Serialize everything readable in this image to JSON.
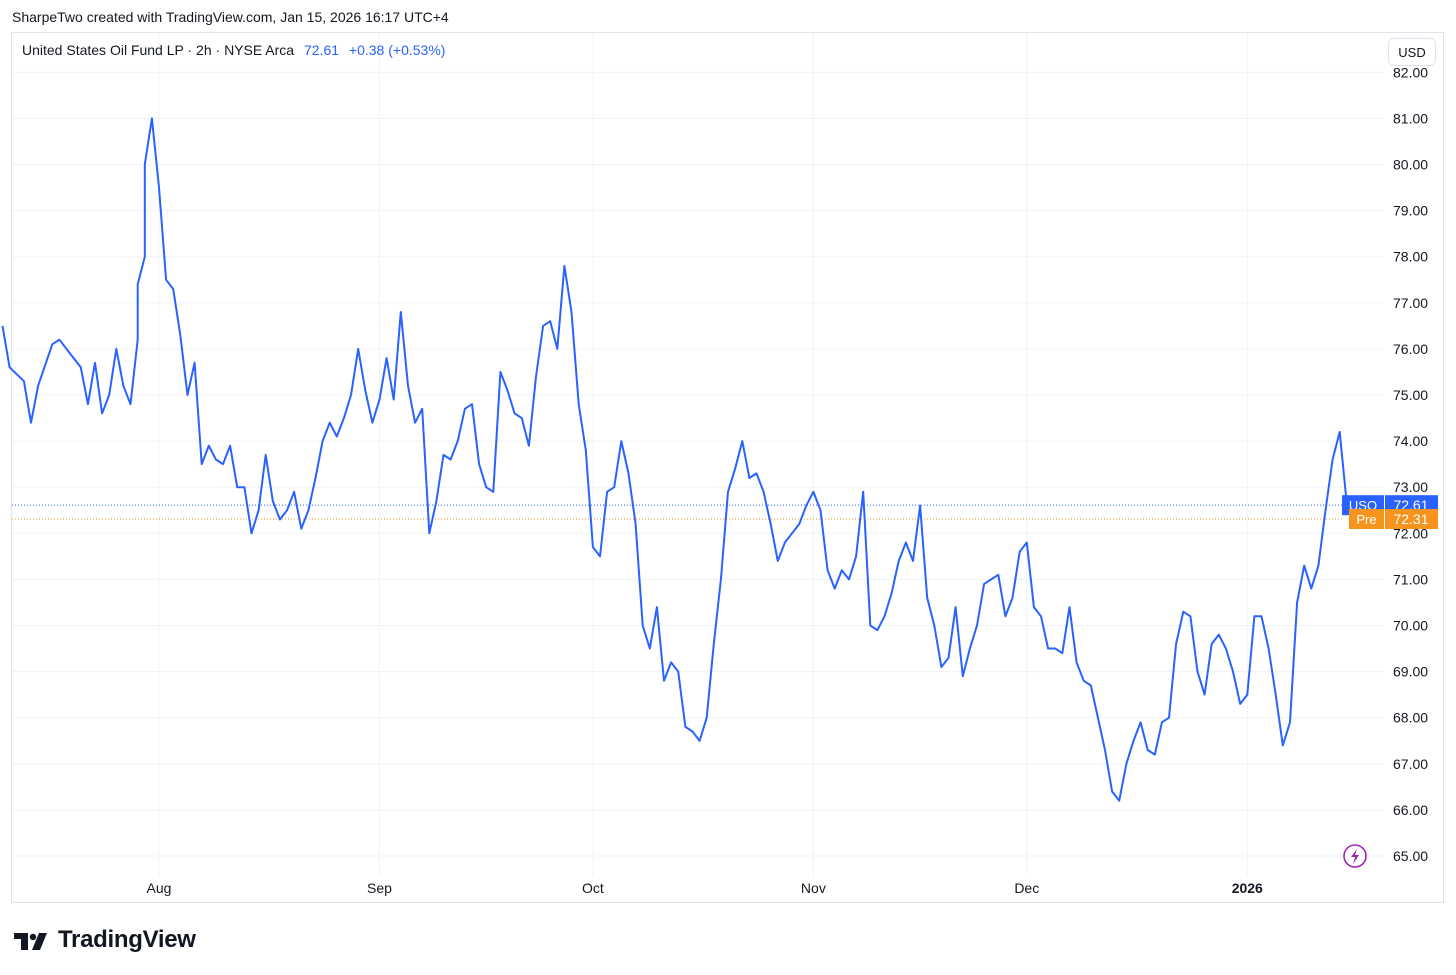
{
  "header": {
    "caption": "SharpeTwo created with TradingView.com, Jan 15, 2026 16:17 UTC+4"
  },
  "legend": {
    "symbol": "United States Oil Fund LP · 2h · NYSE Arca",
    "price": "72.61",
    "change": "+0.38 (+0.53%)"
  },
  "toolbar": {
    "currency": "USD"
  },
  "brand": {
    "name": "TradingView"
  },
  "colors": {
    "line": "#2962ff",
    "pre": "#f7941d",
    "grid": "#f0f3fa",
    "axis_text": "#131722"
  },
  "icons": {
    "logo": "tradingview-logo-icon",
    "lightning": "lightning-icon"
  },
  "chart_data": {
    "type": "line",
    "title": "United States Oil Fund LP · 2h · NYSE Arca",
    "ylim": [
      64.9,
      82.0
    ],
    "x_ticks": [
      {
        "label": "Aug",
        "date": "2025-08-01",
        "bold": false
      },
      {
        "label": "Sep",
        "date": "2025-09-01",
        "bold": false
      },
      {
        "label": "Oct",
        "date": "2025-10-01",
        "bold": false
      },
      {
        "label": "Nov",
        "date": "2025-11-01",
        "bold": false
      },
      {
        "label": "Dec",
        "date": "2025-12-01",
        "bold": false
      },
      {
        "label": "2026",
        "date": "2026-01-01",
        "bold": true
      }
    ],
    "y_ticks": [
      "65.00",
      "66.00",
      "67.00",
      "68.00",
      "69.00",
      "70.00",
      "71.00",
      "72.00",
      "73.00",
      "74.00",
      "75.00",
      "76.00",
      "77.00",
      "78.00",
      "79.00",
      "80.00",
      "81.00",
      "82.00"
    ],
    "grid": true,
    "price_labels": [
      {
        "tag": "USO",
        "value": 72.61,
        "text": "72.61",
        "color": "#2962ff"
      },
      {
        "tag": "Pre",
        "value": 72.31,
        "text": "72.31",
        "color": "#f7941d"
      }
    ],
    "series": [
      {
        "x": [
          "2025-07-10",
          "2025-07-11",
          "2025-07-13",
          "2025-07-14",
          "2025-07-15",
          "2025-07-17",
          "2025-07-18",
          "2025-07-20",
          "2025-07-21",
          "2025-07-22",
          "2025-07-23",
          "2025-07-24",
          "2025-07-25",
          "2025-07-26",
          "2025-07-27",
          "2025-07-28",
          "2025-07-29",
          "2025-07-29",
          "2025-07-30",
          "2025-07-30",
          "2025-07-31",
          "2025-08-01",
          "2025-08-02",
          "2025-08-03",
          "2025-08-04",
          "2025-08-05",
          "2025-08-06",
          "2025-08-07",
          "2025-08-08",
          "2025-08-09",
          "2025-08-10",
          "2025-08-11",
          "2025-08-12",
          "2025-08-13",
          "2025-08-14",
          "2025-08-15",
          "2025-08-16",
          "2025-08-17",
          "2025-08-18",
          "2025-08-19",
          "2025-08-20",
          "2025-08-21",
          "2025-08-22",
          "2025-08-23",
          "2025-08-24",
          "2025-08-25",
          "2025-08-26",
          "2025-08-27",
          "2025-08-28",
          "2025-08-29",
          "2025-08-30",
          "2025-08-31",
          "2025-09-01",
          "2025-09-02",
          "2025-09-03",
          "2025-09-04",
          "2025-09-05",
          "2025-09-06",
          "2025-09-07",
          "2025-09-08",
          "2025-09-09",
          "2025-09-10",
          "2025-09-11",
          "2025-09-12",
          "2025-09-13",
          "2025-09-14",
          "2025-09-15",
          "2025-09-16",
          "2025-09-17",
          "2025-09-18",
          "2025-09-19",
          "2025-09-20",
          "2025-09-21",
          "2025-09-22",
          "2025-09-23",
          "2025-09-24",
          "2025-09-25",
          "2025-09-26",
          "2025-09-27",
          "2025-09-28",
          "2025-09-29",
          "2025-09-30",
          "2025-10-01",
          "2025-10-02",
          "2025-10-03",
          "2025-10-04",
          "2025-10-05",
          "2025-10-06",
          "2025-10-07",
          "2025-10-08",
          "2025-10-09",
          "2025-10-10",
          "2025-10-11",
          "2025-10-12",
          "2025-10-13",
          "2025-10-14",
          "2025-10-15",
          "2025-10-16",
          "2025-10-17",
          "2025-10-18",
          "2025-10-19",
          "2025-10-20",
          "2025-10-21",
          "2025-10-22",
          "2025-10-23",
          "2025-10-24",
          "2025-10-25",
          "2025-10-26",
          "2025-10-27",
          "2025-10-28",
          "2025-10-29",
          "2025-10-30",
          "2025-10-31",
          "2025-11-01",
          "2025-11-02",
          "2025-11-03",
          "2025-11-04",
          "2025-11-05",
          "2025-11-06",
          "2025-11-07",
          "2025-11-08",
          "2025-11-09",
          "2025-11-10",
          "2025-11-11",
          "2025-11-12",
          "2025-11-13",
          "2025-11-14",
          "2025-11-15",
          "2025-11-16",
          "2025-11-17",
          "2025-11-18",
          "2025-11-19",
          "2025-11-20",
          "2025-11-21",
          "2025-11-22",
          "2025-11-23",
          "2025-11-24",
          "2025-11-25",
          "2025-11-26",
          "2025-11-27",
          "2025-11-28",
          "2025-11-29",
          "2025-11-30",
          "2025-12-01",
          "2025-12-02",
          "2025-12-03",
          "2025-12-04",
          "2025-12-05",
          "2025-12-06",
          "2025-12-07",
          "2025-12-08",
          "2025-12-09",
          "2025-12-10",
          "2025-12-11",
          "2025-12-12",
          "2025-12-13",
          "2025-12-14",
          "2025-12-15",
          "2025-12-16",
          "2025-12-17",
          "2025-12-18",
          "2025-12-19",
          "2025-12-20",
          "2025-12-21",
          "2025-12-22",
          "2025-12-23",
          "2025-12-24",
          "2025-12-25",
          "2025-12-26",
          "2025-12-27",
          "2025-12-28",
          "2025-12-29",
          "2025-12-30",
          "2025-12-31",
          "2026-01-01",
          "2026-01-02",
          "2026-01-03",
          "2026-01-04",
          "2026-01-05",
          "2026-01-06",
          "2026-01-07",
          "2026-01-08",
          "2026-01-09",
          "2026-01-10",
          "2026-01-11",
          "2026-01-12",
          "2026-01-13",
          "2026-01-14",
          "2026-01-15"
        ],
        "values": [
          76.5,
          75.6,
          75.3,
          74.4,
          75.2,
          76.1,
          76.2,
          75.8,
          75.6,
          74.8,
          75.7,
          74.6,
          75.0,
          76.0,
          75.2,
          74.8,
          76.2,
          77.4,
          78.0,
          80.0,
          81.0,
          79.5,
          77.5,
          77.3,
          76.3,
          75.0,
          75.7,
          73.5,
          73.9,
          73.6,
          73.5,
          73.9,
          73.0,
          73.0,
          72.0,
          72.5,
          73.7,
          72.7,
          72.3,
          72.5,
          72.9,
          72.1,
          72.5,
          73.2,
          74.0,
          74.4,
          74.1,
          74.5,
          75.0,
          76.0,
          75.1,
          74.4,
          74.9,
          75.8,
          74.9,
          76.8,
          75.2,
          74.4,
          74.7,
          72.0,
          72.7,
          73.7,
          73.6,
          74.0,
          74.7,
          74.8,
          73.5,
          73.0,
          72.9,
          75.5,
          75.1,
          74.6,
          74.5,
          73.9,
          75.4,
          76.5,
          76.6,
          76.0,
          77.8,
          76.8,
          74.8,
          73.8,
          71.7,
          71.5,
          72.9,
          73.0,
          74.0,
          73.3,
          72.2,
          70.0,
          69.5,
          70.4,
          68.8,
          69.2,
          69.0,
          67.8,
          67.7,
          67.5,
          68.0,
          69.6,
          71.0,
          72.9,
          73.4,
          74.0,
          73.2,
          73.3,
          72.9,
          72.2,
          71.4,
          71.8,
          72.0,
          72.2,
          72.6,
          72.9,
          72.5,
          71.2,
          70.8,
          71.2,
          71.0,
          71.5,
          72.9,
          70.0,
          69.9,
          70.2,
          70.7,
          71.4,
          71.8,
          71.4,
          72.6,
          70.6,
          70.0,
          69.1,
          69.3,
          70.4,
          68.9,
          69.5,
          70.0,
          70.9,
          71.0,
          71.1,
          70.2,
          70.6,
          71.6,
          71.8,
          70.4,
          70.2,
          69.5,
          69.5,
          69.4,
          70.4,
          69.2,
          68.8,
          68.7,
          68.0,
          67.3,
          66.4,
          66.2,
          67.0,
          67.5,
          67.9,
          67.3,
          67.2,
          67.9,
          68.0,
          69.6,
          70.3,
          70.2,
          69.0,
          68.5,
          69.6,
          69.8,
          69.5,
          69.0,
          68.3,
          68.5,
          70.2,
          70.2,
          69.5,
          68.5,
          67.4,
          67.9,
          70.5,
          71.3,
          70.8,
          71.3,
          72.5,
          73.6,
          74.2,
          72.61
        ]
      }
    ]
  }
}
